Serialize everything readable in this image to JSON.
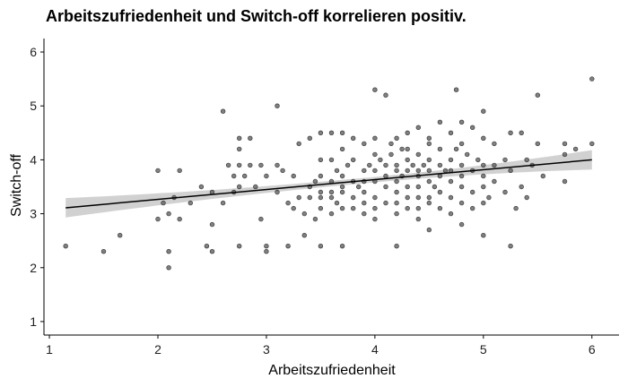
{
  "chart_data": {
    "type": "scatter",
    "title": "Arbeitszufriedenheit und Switch-off korrelieren positiv.",
    "xlabel": "Arbeitszufriedenheit",
    "ylabel": "Switch-off",
    "xlim": [
      0.95,
      6.25
    ],
    "ylim": [
      0.75,
      6.25
    ],
    "xticks": [
      1,
      2,
      3,
      4,
      5,
      6
    ],
    "yticks": [
      1,
      2,
      3,
      4,
      5,
      6
    ],
    "grid": false,
    "point_color": "#555555",
    "fit": {
      "method": "linear",
      "x_range": [
        1.15,
        6.0
      ],
      "y_start": 3.11,
      "y_end": 4.0,
      "ci_halfwidth_ends": 0.18,
      "ci_halfwidth_center": 0.05,
      "ci_center_x": 3.9
    },
    "points": [
      [
        1.15,
        2.4
      ],
      [
        1.5,
        2.3
      ],
      [
        1.65,
        2.6
      ],
      [
        2.0,
        3.8
      ],
      [
        2.0,
        2.9
      ],
      [
        2.05,
        3.2
      ],
      [
        2.1,
        2.3
      ],
      [
        2.1,
        2.0
      ],
      [
        2.1,
        3.0
      ],
      [
        2.15,
        3.3
      ],
      [
        2.2,
        3.8
      ],
      [
        2.2,
        2.9
      ],
      [
        2.3,
        3.2
      ],
      [
        2.4,
        3.5
      ],
      [
        2.45,
        2.4
      ],
      [
        2.5,
        3.4
      ],
      [
        2.5,
        2.8
      ],
      [
        2.5,
        2.3
      ],
      [
        2.6,
        4.9
      ],
      [
        2.6,
        3.2
      ],
      [
        2.65,
        3.9
      ],
      [
        2.7,
        3.7
      ],
      [
        2.7,
        3.4
      ],
      [
        2.75,
        4.4
      ],
      [
        2.75,
        4.2
      ],
      [
        2.75,
        3.9
      ],
      [
        2.75,
        3.5
      ],
      [
        2.75,
        2.4
      ],
      [
        2.8,
        3.7
      ],
      [
        2.85,
        4.4
      ],
      [
        2.85,
        3.9
      ],
      [
        2.9,
        3.5
      ],
      [
        2.95,
        3.9
      ],
      [
        2.95,
        2.9
      ],
      [
        3.0,
        3.7
      ],
      [
        3.0,
        2.4
      ],
      [
        3.0,
        2.3
      ],
      [
        3.1,
        5.0
      ],
      [
        3.1,
        3.9
      ],
      [
        3.1,
        3.4
      ],
      [
        3.15,
        3.8
      ],
      [
        3.2,
        3.2
      ],
      [
        3.2,
        2.4
      ],
      [
        3.25,
        3.1
      ],
      [
        3.25,
        3.7
      ],
      [
        3.3,
        4.3
      ],
      [
        3.3,
        3.3
      ],
      [
        3.35,
        3.0
      ],
      [
        3.35,
        2.6
      ],
      [
        3.4,
        4.4
      ],
      [
        3.4,
        3.5
      ],
      [
        3.4,
        3.3
      ],
      [
        3.45,
        3.6
      ],
      [
        3.45,
        2.9
      ],
      [
        3.5,
        4.5
      ],
      [
        3.5,
        4.0
      ],
      [
        3.5,
        3.7
      ],
      [
        3.5,
        3.4
      ],
      [
        3.5,
        3.3
      ],
      [
        3.5,
        3.1
      ],
      [
        3.5,
        2.4
      ],
      [
        3.6,
        4.5
      ],
      [
        3.6,
        4.0
      ],
      [
        3.6,
        3.6
      ],
      [
        3.6,
        3.4
      ],
      [
        3.6,
        3.3
      ],
      [
        3.6,
        3.0
      ],
      [
        3.65,
        3.8
      ],
      [
        3.65,
        3.2
      ],
      [
        3.7,
        4.5
      ],
      [
        3.7,
        4.2
      ],
      [
        3.7,
        3.7
      ],
      [
        3.7,
        3.5
      ],
      [
        3.7,
        3.4
      ],
      [
        3.7,
        3.1
      ],
      [
        3.7,
        2.4
      ],
      [
        3.75,
        3.9
      ],
      [
        3.8,
        4.4
      ],
      [
        3.8,
        4.0
      ],
      [
        3.8,
        3.6
      ],
      [
        3.8,
        3.3
      ],
      [
        3.8,
        3.1
      ],
      [
        3.85,
        3.5
      ],
      [
        3.9,
        4.3
      ],
      [
        3.9,
        3.8
      ],
      [
        3.9,
        3.6
      ],
      [
        3.9,
        3.4
      ],
      [
        3.9,
        3.2
      ],
      [
        3.9,
        3.0
      ],
      [
        3.95,
        3.9
      ],
      [
        4.0,
        5.3
      ],
      [
        4.0,
        4.4
      ],
      [
        4.0,
        4.1
      ],
      [
        4.0,
        3.8
      ],
      [
        4.0,
        3.6
      ],
      [
        4.0,
        3.3
      ],
      [
        4.0,
        3.1
      ],
      [
        4.0,
        2.9
      ],
      [
        4.05,
        4.0
      ],
      [
        4.1,
        5.2
      ],
      [
        4.1,
        3.9
      ],
      [
        4.1,
        3.7
      ],
      [
        4.1,
        3.5
      ],
      [
        4.1,
        3.2
      ],
      [
        4.15,
        4.3
      ],
      [
        4.15,
        4.1
      ],
      [
        4.2,
        4.4
      ],
      [
        4.2,
        3.9
      ],
      [
        4.2,
        3.8
      ],
      [
        4.2,
        3.6
      ],
      [
        4.2,
        3.4
      ],
      [
        4.2,
        3.2
      ],
      [
        4.2,
        3.0
      ],
      [
        4.2,
        2.4
      ],
      [
        4.25,
        4.2
      ],
      [
        4.25,
        3.7
      ],
      [
        4.3,
        4.5
      ],
      [
        4.3,
        4.2
      ],
      [
        4.3,
        4.0
      ],
      [
        4.3,
        3.8
      ],
      [
        4.3,
        3.5
      ],
      [
        4.3,
        3.3
      ],
      [
        4.3,
        3.1
      ],
      [
        4.35,
        3.9
      ],
      [
        4.4,
        4.6
      ],
      [
        4.4,
        4.1
      ],
      [
        4.4,
        3.8
      ],
      [
        4.4,
        3.7
      ],
      [
        4.4,
        3.5
      ],
      [
        4.4,
        3.3
      ],
      [
        4.4,
        3.1
      ],
      [
        4.4,
        2.9
      ],
      [
        4.45,
        3.9
      ],
      [
        4.5,
        4.4
      ],
      [
        4.5,
        4.3
      ],
      [
        4.5,
        4.0
      ],
      [
        4.5,
        3.8
      ],
      [
        4.5,
        3.6
      ],
      [
        4.5,
        3.3
      ],
      [
        4.5,
        3.2
      ],
      [
        4.5,
        2.7
      ],
      [
        4.55,
        3.5
      ],
      [
        4.6,
        4.7
      ],
      [
        4.6,
        4.2
      ],
      [
        4.6,
        3.9
      ],
      [
        4.6,
        3.7
      ],
      [
        4.6,
        3.4
      ],
      [
        4.6,
        3.1
      ],
      [
        4.65,
        3.8
      ],
      [
        4.7,
        4.5
      ],
      [
        4.7,
        4.0
      ],
      [
        4.7,
        3.8
      ],
      [
        4.7,
        3.6
      ],
      [
        4.7,
        3.3
      ],
      [
        4.7,
        3.0
      ],
      [
        4.75,
        5.3
      ],
      [
        4.75,
        4.2
      ],
      [
        4.8,
        4.7
      ],
      [
        4.8,
        4.3
      ],
      [
        4.8,
        3.9
      ],
      [
        4.8,
        3.7
      ],
      [
        4.8,
        3.5
      ],
      [
        4.8,
        3.2
      ],
      [
        4.8,
        2.8
      ],
      [
        4.85,
        4.1
      ],
      [
        4.9,
        4.6
      ],
      [
        4.9,
        3.8
      ],
      [
        4.9,
        3.4
      ],
      [
        4.9,
        3.1
      ],
      [
        4.95,
        4.0
      ],
      [
        5.0,
        4.9
      ],
      [
        5.0,
        4.4
      ],
      [
        5.0,
        3.9
      ],
      [
        5.0,
        3.7
      ],
      [
        5.0,
        3.5
      ],
      [
        5.0,
        3.2
      ],
      [
        5.0,
        2.6
      ],
      [
        5.05,
        3.3
      ],
      [
        5.1,
        4.3
      ],
      [
        5.1,
        3.9
      ],
      [
        5.1,
        3.6
      ],
      [
        5.2,
        4.0
      ],
      [
        5.2,
        3.4
      ],
      [
        5.25,
        4.5
      ],
      [
        5.25,
        3.8
      ],
      [
        5.25,
        2.4
      ],
      [
        5.3,
        3.1
      ],
      [
        5.35,
        4.5
      ],
      [
        5.35,
        3.5
      ],
      [
        5.4,
        4.0
      ],
      [
        5.4,
        3.3
      ],
      [
        5.45,
        3.9
      ],
      [
        5.5,
        5.2
      ],
      [
        5.5,
        4.3
      ],
      [
        5.55,
        3.7
      ],
      [
        5.75,
        4.3
      ],
      [
        5.75,
        3.6
      ],
      [
        5.75,
        4.1
      ],
      [
        5.85,
        4.2
      ],
      [
        6.0,
        5.5
      ],
      [
        6.0,
        4.3
      ]
    ]
  }
}
